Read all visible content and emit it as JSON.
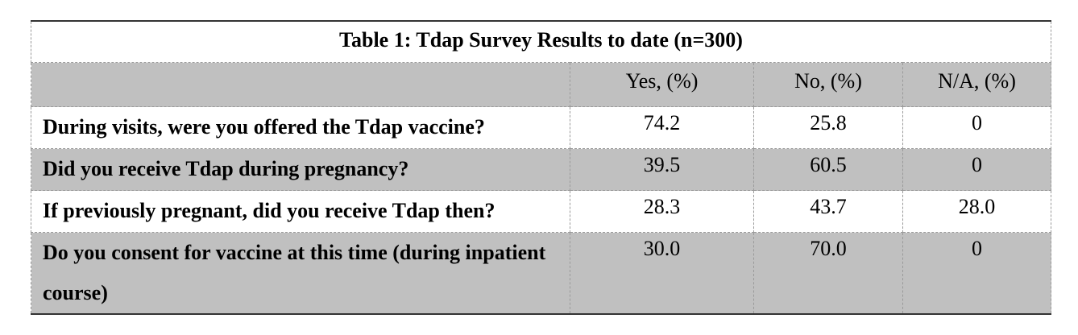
{
  "table": {
    "title": "Table 1: Tdap Survey Results to date (n=300)",
    "header": [
      "Yes, (%)",
      "No, (%)",
      "N/A, (%)"
    ],
    "rows": [
      {
        "question": "During visits, were you offered the Tdap vaccine?",
        "values": [
          "74.2",
          "25.8",
          "0"
        ]
      },
      {
        "question": "Did you receive Tdap during pregnancy?",
        "values": [
          "39.5",
          "60.5",
          "0"
        ]
      },
      {
        "question": "If previously pregnant, did you receive Tdap then?",
        "values": [
          "28.3",
          "43.7",
          "28.0"
        ]
      },
      {
        "question": "Do you consent for vaccine at this time (during inpatient course)",
        "values": [
          "30.0",
          "70.0",
          "0"
        ]
      }
    ]
  }
}
